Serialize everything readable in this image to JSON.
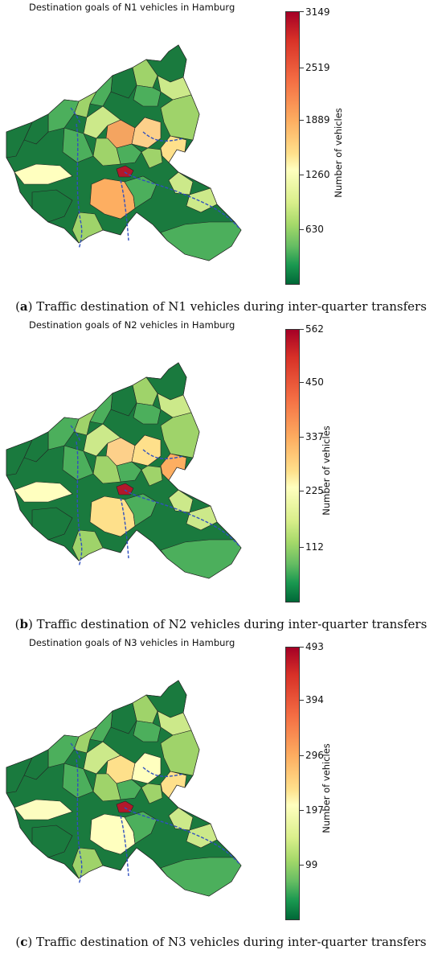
{
  "panels": [
    {
      "title": "Destination goals of N1 vehicles in Hamburg",
      "colorbar_label": "Number of vehicles",
      "ticks": [
        "3149",
        "2519",
        "1889",
        "1260",
        "630"
      ],
      "caption_letter": "a",
      "caption_text": ") Traffic destination of N1 vehicles during inter-quarter transfers",
      "hot_colors": [
        "#f4a460",
        "#fdd08a",
        "#fee08b",
        "#ffffbf",
        "#fdae61"
      ]
    },
    {
      "title": "Destination goals of N2 vehicles in Hamburg",
      "colorbar_label": "Number of vehicles",
      "ticks": [
        "562",
        "450",
        "337",
        "225",
        "112"
      ],
      "caption_letter": "b",
      "caption_text": ") Traffic destination of N2 vehicles during inter-quarter transfers",
      "hot_colors": [
        "#fdd08a",
        "#fee08b",
        "#fdae61",
        "#ffffbf",
        "#fee08b"
      ]
    },
    {
      "title": "Destination goals of N3 vehicles in Hamburg",
      "colorbar_label": "Number of vehicles",
      "ticks": [
        "493",
        "394",
        "296",
        "197",
        "99"
      ],
      "caption_letter": "c",
      "caption_text": ") Traffic destination of N3 vehicles during inter-quarter transfers",
      "hot_colors": [
        "#fee08b",
        "#ffffbf",
        "#fee08b",
        "#fdfdc0",
        "#ffffbf"
      ]
    }
  ],
  "colors": {
    "dark": "#1a7a3e",
    "mid": "#4caf5c",
    "light": "#9fd36a",
    "pale": "#cce98a",
    "peak": "#b2182b",
    "river": "#3050c0"
  }
}
